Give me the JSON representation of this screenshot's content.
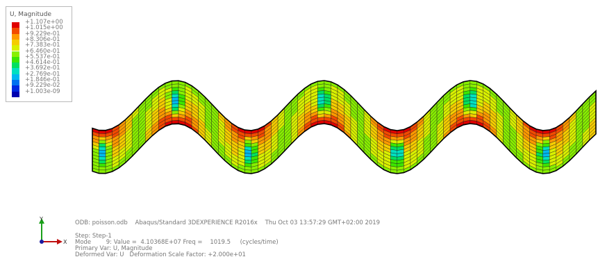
{
  "legend": {
    "title": "U, Magnitude",
    "entries": [
      {
        "label": "+1.107e+00",
        "color": "#e00000"
      },
      {
        "label": "+1.015e+00",
        "color": "#f24a00"
      },
      {
        "label": "+9.229e-01",
        "color": "#ff9900"
      },
      {
        "label": "+8.306e-01",
        "color": "#f5cc00"
      },
      {
        "label": "+7.383e-01",
        "color": "#d9f000"
      },
      {
        "label": "+6.460e-01",
        "color": "#88f000"
      },
      {
        "label": "+5.537e-01",
        "color": "#3ce600"
      },
      {
        "label": "+4.614e-01",
        "color": "#00e060"
      },
      {
        "label": "+3.692e-01",
        "color": "#00e0c0"
      },
      {
        "label": "+2.769e-01",
        "color": "#00b8f0"
      },
      {
        "label": "+1.846e-01",
        "color": "#0070f0"
      },
      {
        "label": "+9.229e-02",
        "color": "#0028e0"
      },
      {
        "label": "+1.003e-09",
        "color": "#0000b0"
      }
    ]
  },
  "triad": {
    "y_label": "Y",
    "x_label": "X"
  },
  "info": {
    "odb_line": "ODB: poisson.odb    Abaqus/Standard 3DEXPERIENCE R2016x    Thu Oct 03 13:57:29 GMT+02:00 2019",
    "step_line": "Step: Step-1",
    "mode_line": "Mode        9: Value =  4.10368E+07 Freq =    1019.5     (cycles/time)",
    "primary_line": "Primary Var: U, Magnitude",
    "deformed_line": "Deformed Var: U   Deformation Scale Factor: +2.000e+01"
  }
}
